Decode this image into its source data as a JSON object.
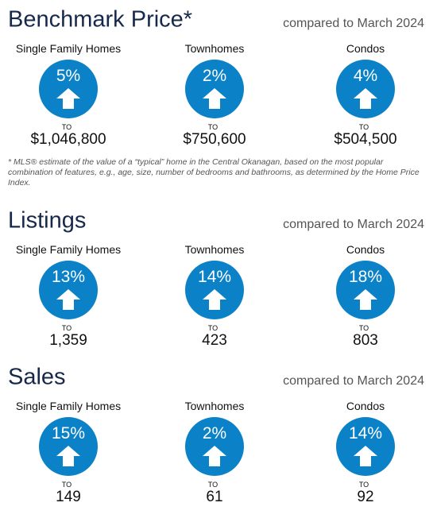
{
  "sections": [
    {
      "title": "Benchmark Price*",
      "comparison": "compared to March 2024",
      "items": [
        {
          "label": "Single Family Homes",
          "change": "5%",
          "to": "TO",
          "value": "$1,046,800"
        },
        {
          "label": "Townhomes",
          "change": "2%",
          "to": "TO",
          "value": "$750,600"
        },
        {
          "label": "Condos",
          "change": "4%",
          "to": "TO",
          "value": "$504,500"
        }
      ]
    },
    {
      "title": "Listings",
      "comparison": "compared to March 2024",
      "items": [
        {
          "label": "Single Family Homes",
          "change": "13%",
          "to": "TO",
          "value": "1,359"
        },
        {
          "label": "Townhomes",
          "change": "14%",
          "to": "TO",
          "value": "423"
        },
        {
          "label": "Condos",
          "change": "18%",
          "to": "TO",
          "value": "803"
        }
      ]
    },
    {
      "title": "Sales",
      "comparison": "compared to March 2024",
      "items": [
        {
          "label": "Single Family Homes",
          "change": "15%",
          "to": "TO",
          "value": "149"
        },
        {
          "label": "Townhomes",
          "change": "2%",
          "to": "TO",
          "value": "61"
        },
        {
          "label": "Condos",
          "change": "14%",
          "to": "TO",
          "value": "92"
        }
      ]
    }
  ],
  "footnote": "* MLS® estimate of the value of a “typical” home in the Central Okanagan, based on the most popular combination of features, e.g., age, size, number of bedrooms and bathrooms, as determined by the Home Price Index."
}
